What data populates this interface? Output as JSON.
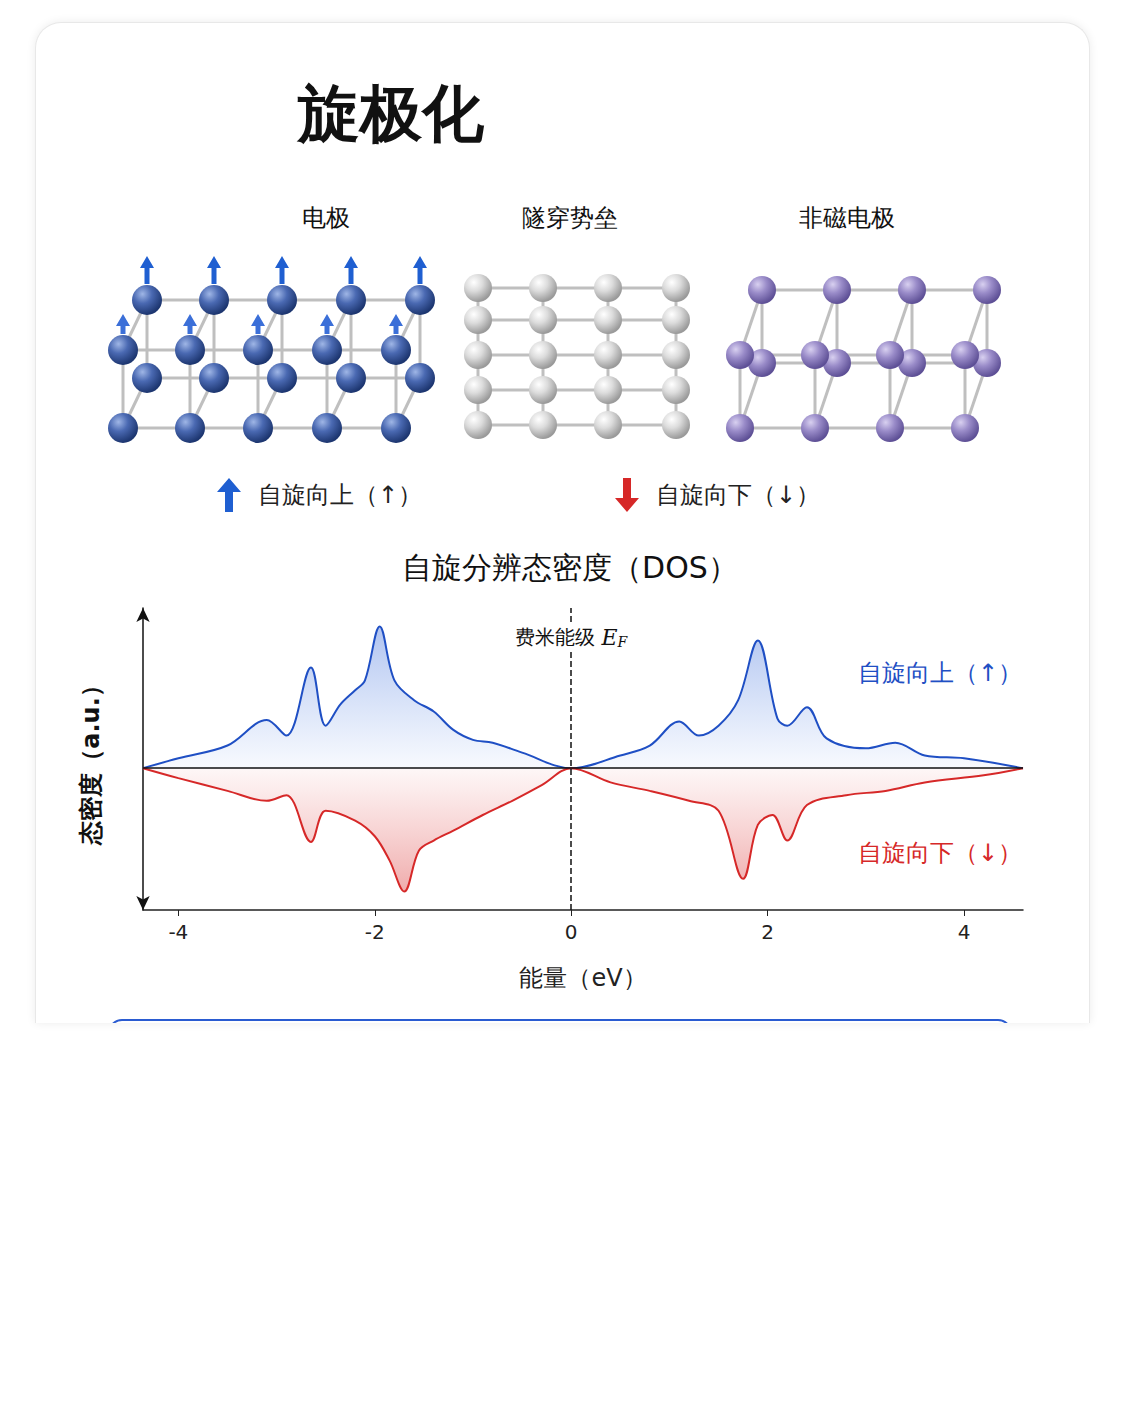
{
  "title": "旋极化",
  "diagram": {
    "columns": [
      {
        "label": "电极"
      },
      {
        "label": "隧穿势垒"
      },
      {
        "label": "非磁电极"
      }
    ],
    "legend": [
      {
        "label": "自旋向上（↑）",
        "color": "#1f5fd1"
      },
      {
        "label": "自旋向下（↓）",
        "color": "#d62828"
      }
    ]
  },
  "chart_data": {
    "type": "line",
    "title": "自旋分辨态密度（DOS）",
    "x_label": "能量（eV）",
    "y_label": "态密度（a.u.）",
    "xlim": [
      -4.36,
      4.6
    ],
    "xticks": [
      -4,
      -2,
      0,
      2,
      4
    ],
    "ylim": [
      -1.0,
      1.13
    ],
    "tick_labels": "x",
    "grid": false,
    "annotations": [
      {
        "text": "费米能级",
        "symbol": "E",
        "subscript": "F",
        "x": 0,
        "line_style": "dashed"
      }
    ],
    "series": [
      {
        "name": "自旋向上（↑）",
        "color": "#1f4fc4",
        "x": [
          -4.36,
          -4,
          -3.5,
          -3.1,
          -2.9,
          -2.65,
          -2.5,
          -2.35,
          -2.2,
          -2.1,
          -1.95,
          -1.8,
          -1.6,
          -1.4,
          -1.2,
          -1,
          -0.8,
          -0.5,
          0,
          0.5,
          0.8,
          1.1,
          1.3,
          1.5,
          1.7,
          1.9,
          2.1,
          2.2,
          2.4,
          2.6,
          3,
          3.3,
          3.6,
          4,
          4.6
        ],
        "values": [
          0,
          0.07,
          0.16,
          0.34,
          0.23,
          0.71,
          0.3,
          0.45,
          0.55,
          0.62,
          1,
          0.62,
          0.48,
          0.4,
          0.27,
          0.2,
          0.18,
          0.11,
          0,
          0.09,
          0.16,
          0.33,
          0.23,
          0.3,
          0.48,
          0.9,
          0.35,
          0.3,
          0.43,
          0.21,
          0.14,
          0.18,
          0.09,
          0.07,
          0
        ]
      },
      {
        "name": "自旋向下（↓）",
        "color": "#d62828",
        "x": [
          -4.36,
          -4,
          -3.5,
          -3.1,
          -2.9,
          -2.65,
          -2.5,
          -2.2,
          -2.0,
          -1.85,
          -1.7,
          -1.55,
          -1.4,
          -1.2,
          -0.9,
          -0.6,
          -0.3,
          0,
          0.4,
          0.8,
          1.2,
          1.5,
          1.75,
          1.9,
          2.05,
          2.2,
          2.4,
          2.8,
          3.2,
          3.6,
          4.2,
          4.6
        ],
        "values": [
          0,
          -0.07,
          -0.16,
          -0.23,
          -0.19,
          -0.52,
          -0.3,
          -0.37,
          -0.48,
          -0.65,
          -0.87,
          -0.58,
          -0.51,
          -0.44,
          -0.33,
          -0.23,
          -0.12,
          0,
          -0.1,
          -0.16,
          -0.23,
          -0.3,
          -0.78,
          -0.4,
          -0.33,
          -0.51,
          -0.26,
          -0.19,
          -0.16,
          -0.1,
          -0.05,
          0
        ]
      }
    ]
  }
}
